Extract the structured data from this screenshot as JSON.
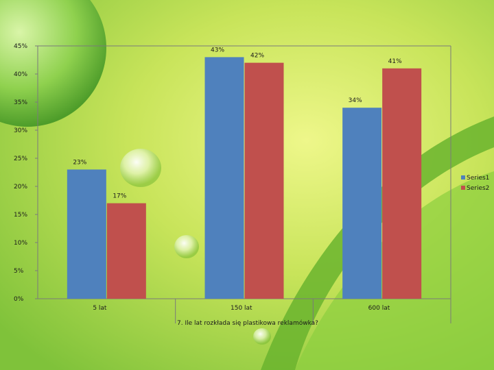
{
  "chart_data": {
    "type": "bar",
    "categories": [
      "5 lat",
      "150 lat",
      "600 lat"
    ],
    "series": [
      {
        "name": "Series1",
        "values": [
          23,
          43,
          34
        ],
        "color": "#4f81bd"
      },
      {
        "name": "Series2",
        "values": [
          17,
          42,
          41
        ],
        "color": "#c0504d"
      }
    ],
    "data_labels": {
      "Series1": [
        "23%",
        "43%",
        "34%"
      ],
      "Series2": [
        "17%",
        "42%",
        "41%"
      ]
    },
    "ylim": [
      0,
      45
    ],
    "yticks": [
      "0%",
      "5%",
      "10%",
      "15%",
      "20%",
      "25%",
      "30%",
      "35%",
      "40%",
      "45%"
    ],
    "xlabel": "7. Ile lat rozkłada się plastikowa reklamówka?",
    "legend_position": "right",
    "grid": false
  }
}
